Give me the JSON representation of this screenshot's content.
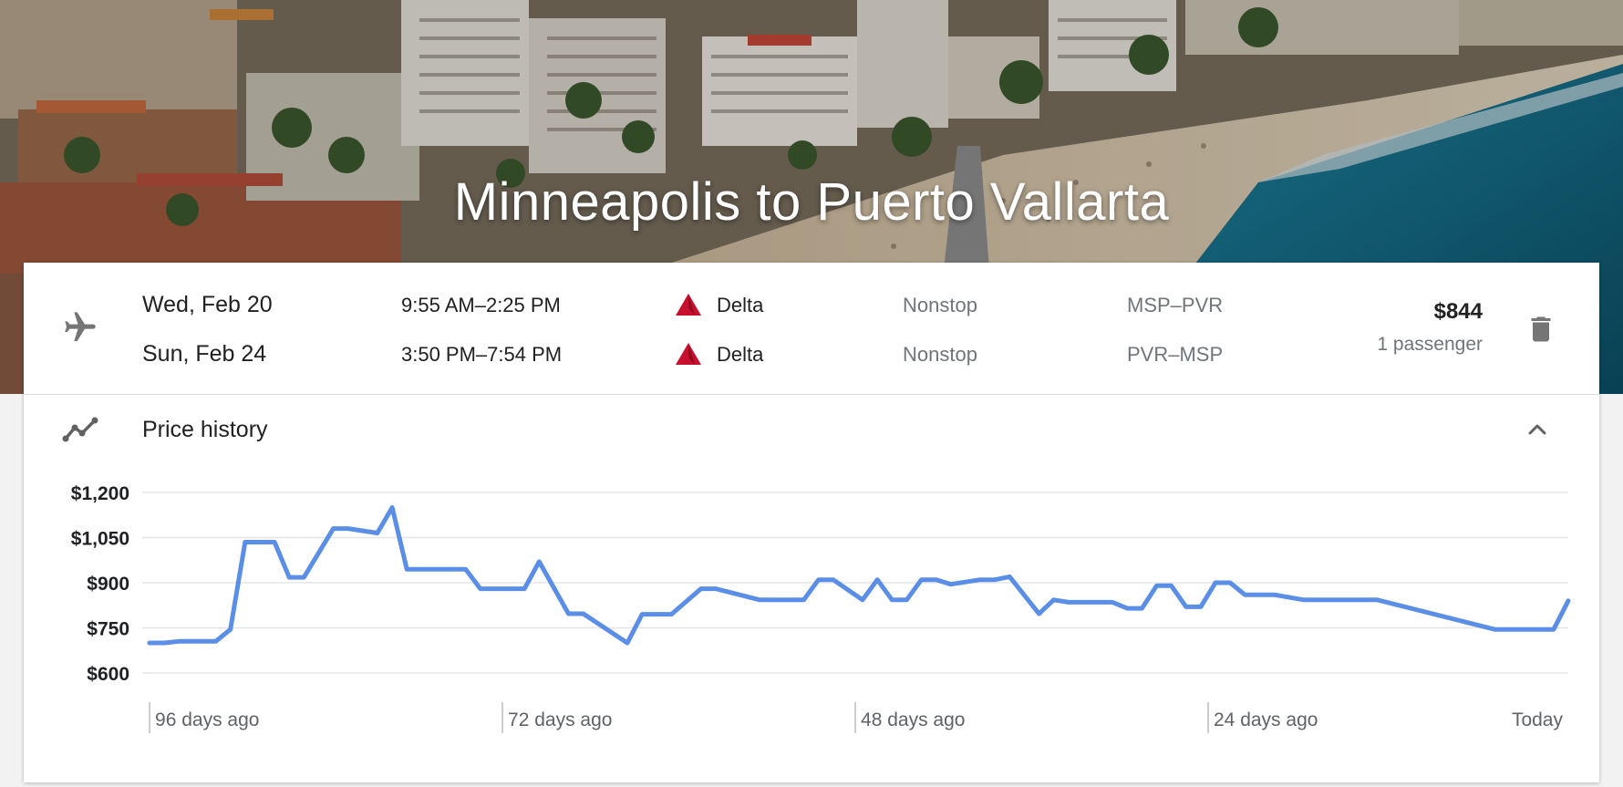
{
  "hero": {
    "title": "Minneapolis to Puerto Vallarta"
  },
  "itinerary": {
    "legs": [
      {
        "date": "Wed, Feb 20",
        "times": "9:55 AM–2:25 PM",
        "airline": "Delta",
        "stops": "Nonstop",
        "route": "MSP–PVR"
      },
      {
        "date": "Sun, Feb 24",
        "times": "3:50 PM–7:54 PM",
        "airline": "Delta",
        "stops": "Nonstop",
        "route": "PVR–MSP"
      }
    ],
    "price": "$844",
    "passengers": "1 passenger",
    "icons": {
      "plane": "airplane-icon",
      "airline": "delta-logo-icon",
      "delete": "trash-icon"
    },
    "colors": {
      "delta_red": "#c8102e"
    }
  },
  "price_history": {
    "title": "Price history",
    "icons": {
      "section": "trend-line-icon",
      "toggle": "chevron-up-icon"
    }
  },
  "chart_data": {
    "type": "line",
    "title": "",
    "xlabel": "",
    "ylabel": "",
    "y_tick_labels": [
      "$1,200",
      "$1,050",
      "$900",
      "$750",
      "$600"
    ],
    "y_ticks": [
      1200,
      1050,
      900,
      750,
      600
    ],
    "ylim": [
      600,
      1200
    ],
    "x_tick_labels": [
      "96 days ago",
      "72 days ago",
      "48 days ago",
      "24 days ago",
      "Today"
    ],
    "x_ticks": [
      -96,
      -72,
      -48,
      -24,
      0
    ],
    "xlim": [
      -96.5,
      0
    ],
    "grid": true,
    "line_color": "#5b8ee6",
    "series": [
      {
        "x": [
          -96.5,
          -95.5,
          -94.5,
          -93.5,
          -92,
          -91,
          -90,
          -88,
          -87,
          -86,
          -84,
          -83,
          -81,
          -80,
          -79,
          -77,
          -75,
          -74,
          -72,
          -71,
          -70,
          -68,
          -67,
          -64,
          -63,
          -61,
          -59,
          -58,
          -55,
          -54,
          -52,
          -51,
          -50,
          -48,
          -47,
          -46,
          -45,
          -44,
          -43,
          -42,
          -40,
          -39,
          -38,
          -36,
          -35,
          -34,
          -33,
          -31,
          -30,
          -29,
          -28,
          -27,
          -26,
          -25,
          -24,
          -23,
          -22,
          -21,
          -20,
          -18,
          -17,
          -16,
          -14,
          -13,
          -5,
          -4,
          -1,
          0
        ],
        "y": [
          700,
          700,
          705,
          705,
          705,
          745,
          1035,
          1035,
          918,
          918,
          1080,
          1080,
          1065,
          1150,
          945,
          945,
          945,
          880,
          880,
          880,
          970,
          797,
          797,
          700,
          795,
          795,
          880,
          880,
          843,
          843,
          843,
          910,
          910,
          843,
          910,
          843,
          843,
          910,
          910,
          895,
          910,
          910,
          920,
          797,
          843,
          835,
          835,
          835,
          815,
          815,
          890,
          890,
          820,
          820,
          900,
          900,
          860,
          860,
          860,
          843,
          843,
          843,
          843,
          843,
          745,
          745,
          745,
          840
        ]
      }
    ]
  }
}
